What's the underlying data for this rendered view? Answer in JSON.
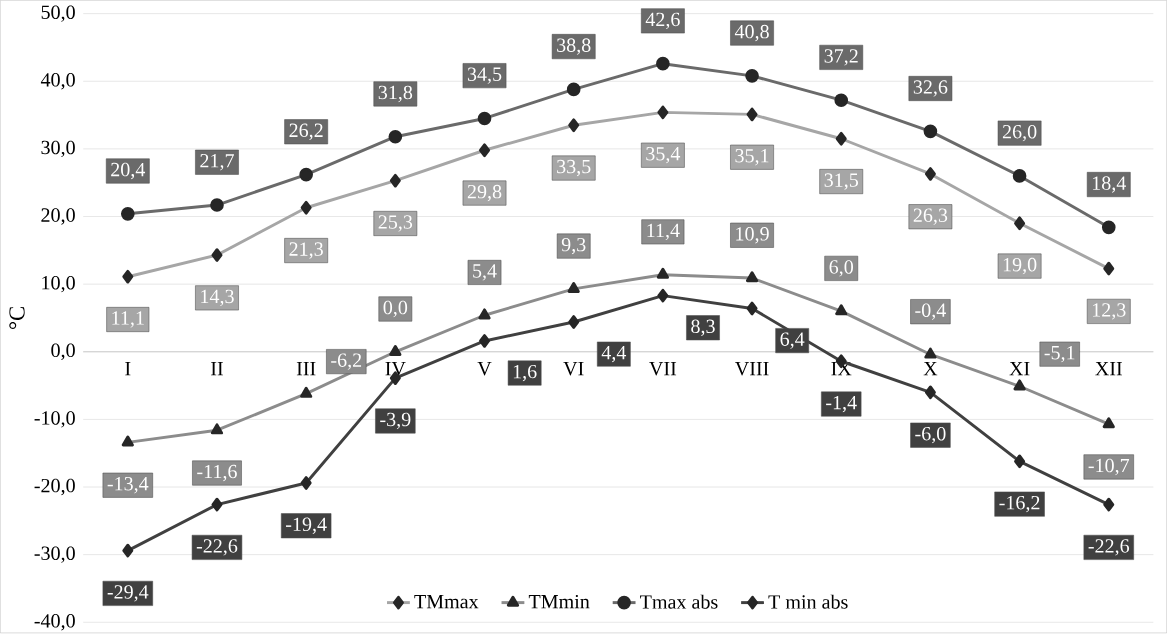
{
  "chart_data": {
    "type": "line",
    "ylabel": "°C",
    "categories": [
      "I",
      "II",
      "III",
      "IV",
      "V",
      "VI",
      "VII",
      "VIII",
      "IX",
      "X",
      "XI",
      "XII"
    ],
    "ylim": [
      -40,
      50
    ],
    "yticks": [
      {
        "value": -40,
        "label": "-40,0"
      },
      {
        "value": -30,
        "label": "-30,0"
      },
      {
        "value": -20,
        "label": "-20,0"
      },
      {
        "value": -10,
        "label": "-10,0"
      },
      {
        "value": 0,
        "label": "0,0"
      },
      {
        "value": 10,
        "label": "10,0"
      },
      {
        "value": 20,
        "label": "20,0"
      },
      {
        "value": 30,
        "label": "30,0"
      },
      {
        "value": 40,
        "label": "40,0"
      },
      {
        "value": 50,
        "label": "50,0"
      }
    ],
    "grid": "y",
    "legend": "bottom",
    "line_style": "solid",
    "series": [
      {
        "name": "TMmax",
        "color": "#a6a6a6",
        "marker": "diamond",
        "values": [
          11.1,
          14.3,
          21.3,
          25.3,
          29.8,
          33.5,
          35.4,
          35.1,
          31.5,
          26.3,
          19.0,
          12.3
        ],
        "value_labels": [
          "11,1",
          "14,3",
          "21,3",
          "25,3",
          "29,8",
          "33,5",
          "35,4",
          "35,1",
          "31,5",
          "26,3",
          "19,0",
          "12,3"
        ]
      },
      {
        "name": "TMmin",
        "color": "#8c8c8c",
        "marker": "triangle",
        "values": [
          -13.4,
          -11.6,
          -6.2,
          0.0,
          5.4,
          9.3,
          11.4,
          10.9,
          6.0,
          -0.4,
          -5.1,
          -10.7
        ],
        "value_labels": [
          "-13,4",
          "-11,6",
          "-6,2",
          "0,0",
          "5,4",
          "9,3",
          "11,4",
          "10,9",
          "6,0",
          "-0,4",
          "-5,1",
          "-10,7"
        ]
      },
      {
        "name": "Tmax abs",
        "color": "#6a6a6a",
        "marker": "circle",
        "values": [
          20.4,
          21.7,
          26.2,
          31.8,
          34.5,
          38.8,
          42.6,
          40.8,
          37.2,
          32.6,
          26.0,
          18.4
        ],
        "value_labels": [
          "20,4",
          "21,7",
          "26,2",
          "31,8",
          "34,5",
          "38,8",
          "42,6",
          "40,8",
          "37,2",
          "32,6",
          "26,0",
          "18,4"
        ]
      },
      {
        "name": "T min abs",
        "color": "#404040",
        "marker": "diamond",
        "values": [
          -29.4,
          -22.6,
          -19.4,
          -3.9,
          1.6,
          4.4,
          8.3,
          6.4,
          -1.4,
          -6.0,
          -16.2,
          -22.6
        ],
        "value_labels": [
          "-29,4",
          "-22,6",
          "-19,4",
          "-3,9",
          "1,6",
          "4,4",
          "8,3",
          "6,4",
          "-1,4",
          "-6,0",
          "-16,2",
          "-22,6"
        ]
      }
    ]
  }
}
